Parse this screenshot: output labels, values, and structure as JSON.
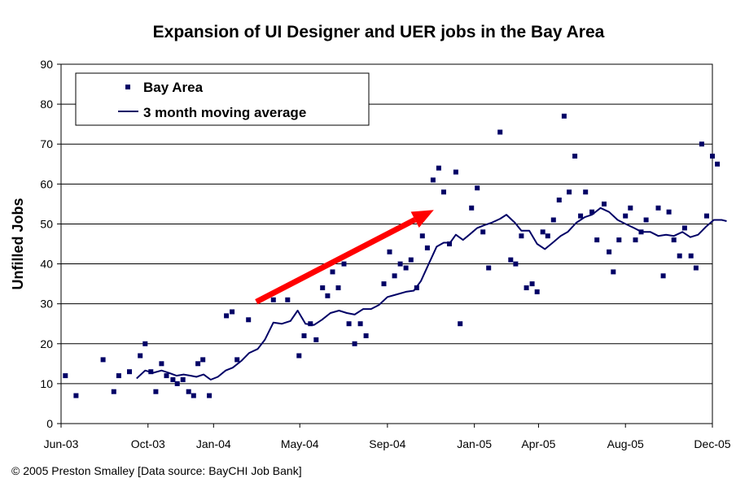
{
  "chart_data": {
    "type": "scatter",
    "title": "Expansion of UI Designer and UER jobs in the Bay Area",
    "xlabel": "",
    "ylabel": "Unfilled Jobs",
    "ylim": [
      0,
      90
    ],
    "yticks": [
      0,
      10,
      20,
      30,
      40,
      50,
      60,
      70,
      80,
      90
    ],
    "xlim": [
      "2003-06-01",
      "2005-12-01"
    ],
    "xticks": [
      {
        "date": "2003-06-01",
        "label": "Jun-03"
      },
      {
        "date": "2003-10-01",
        "label": "Oct-03"
      },
      {
        "date": "2004-01-01",
        "label": "Jan-04"
      },
      {
        "date": "2004-05-01",
        "label": "May-04"
      },
      {
        "date": "2004-09-01",
        "label": "Sep-04"
      },
      {
        "date": "2005-01-01",
        "label": "Jan-05"
      },
      {
        "date": "2005-04-01",
        "label": "Apr-05"
      },
      {
        "date": "2005-08-01",
        "label": "Aug-05"
      },
      {
        "date": "2005-12-01",
        "label": "Dec-05"
      }
    ],
    "grid": true,
    "legend_position": "top-left",
    "series": [
      {
        "name": "Bay Area",
        "kind": "scatter",
        "color": "#000066",
        "points": [
          [
            "2003-06-07",
            12
          ],
          [
            "2003-06-22",
            7
          ],
          [
            "2003-07-30",
            16
          ],
          [
            "2003-08-14",
            8
          ],
          [
            "2003-08-21",
            12
          ],
          [
            "2003-09-05",
            13
          ],
          [
            "2003-09-20",
            17
          ],
          [
            "2003-09-27",
            20
          ],
          [
            "2003-10-05",
            13
          ],
          [
            "2003-10-12",
            8
          ],
          [
            "2003-10-20",
            15
          ],
          [
            "2003-10-27",
            12
          ],
          [
            "2003-11-05",
            11
          ],
          [
            "2003-11-11",
            10
          ],
          [
            "2003-11-19",
            11
          ],
          [
            "2003-11-27",
            8
          ],
          [
            "2003-12-04",
            7
          ],
          [
            "2003-12-10",
            15
          ],
          [
            "2003-12-17",
            16
          ],
          [
            "2003-12-26",
            7
          ],
          [
            "2004-01-19",
            27
          ],
          [
            "2004-01-27",
            28
          ],
          [
            "2004-02-03",
            16
          ],
          [
            "2004-02-19",
            26
          ],
          [
            "2004-03-25",
            31
          ],
          [
            "2004-04-14",
            31
          ],
          [
            "2004-04-30",
            17
          ],
          [
            "2004-05-07",
            22
          ],
          [
            "2004-05-16",
            25
          ],
          [
            "2004-05-24",
            21
          ],
          [
            "2004-06-02",
            34
          ],
          [
            "2004-06-09",
            32
          ],
          [
            "2004-06-16",
            38
          ],
          [
            "2004-06-24",
            34
          ],
          [
            "2004-07-02",
            40
          ],
          [
            "2004-07-09",
            25
          ],
          [
            "2004-07-17",
            20
          ],
          [
            "2004-07-25",
            25
          ],
          [
            "2004-08-02",
            22
          ],
          [
            "2004-08-27",
            35
          ],
          [
            "2004-09-04",
            43
          ],
          [
            "2004-09-11",
            37
          ],
          [
            "2004-09-19",
            40
          ],
          [
            "2004-09-27",
            39
          ],
          [
            "2004-10-04",
            41
          ],
          [
            "2004-10-12",
            34
          ],
          [
            "2004-10-20",
            47
          ],
          [
            "2004-10-27",
            44
          ],
          [
            "2004-11-04",
            61
          ],
          [
            "2004-11-12",
            64
          ],
          [
            "2004-11-19",
            58
          ],
          [
            "2004-11-27",
            45
          ],
          [
            "2004-12-06",
            63
          ],
          [
            "2004-12-12",
            25
          ],
          [
            "2004-12-28",
            54
          ],
          [
            "2005-01-05",
            59
          ],
          [
            "2005-01-13",
            48
          ],
          [
            "2005-01-21",
            39
          ],
          [
            "2005-02-06",
            73
          ],
          [
            "2005-02-21",
            41
          ],
          [
            "2005-02-28",
            40
          ],
          [
            "2005-03-08",
            47
          ],
          [
            "2005-03-15",
            34
          ],
          [
            "2005-03-23",
            35
          ],
          [
            "2005-03-30",
            33
          ],
          [
            "2005-04-07",
            48
          ],
          [
            "2005-04-14",
            47
          ],
          [
            "2005-04-22",
            51
          ],
          [
            "2005-04-30",
            56
          ],
          [
            "2005-05-07",
            77
          ],
          [
            "2005-05-14",
            58
          ],
          [
            "2005-05-22",
            67
          ],
          [
            "2005-05-30",
            52
          ],
          [
            "2005-06-06",
            58
          ],
          [
            "2005-06-15",
            53
          ],
          [
            "2005-06-22",
            46
          ],
          [
            "2005-07-02",
            55
          ],
          [
            "2005-07-09",
            43
          ],
          [
            "2005-07-15",
            38
          ],
          [
            "2005-07-23",
            46
          ],
          [
            "2005-08-01",
            52
          ],
          [
            "2005-08-08",
            54
          ],
          [
            "2005-08-15",
            46
          ],
          [
            "2005-08-23",
            48
          ],
          [
            "2005-08-30",
            51
          ],
          [
            "2005-09-16",
            54
          ],
          [
            "2005-09-23",
            37
          ],
          [
            "2005-10-01",
            53
          ],
          [
            "2005-10-08",
            46
          ],
          [
            "2005-10-16",
            42
          ],
          [
            "2005-10-23",
            49
          ],
          [
            "2005-11-01",
            42
          ],
          [
            "2005-11-08",
            39
          ],
          [
            "2005-11-16",
            70
          ],
          [
            "2005-11-23",
            52
          ],
          [
            "2005-12-01",
            67
          ],
          [
            "2005-12-08",
            65
          ]
        ]
      },
      {
        "name": "3 month moving average",
        "kind": "line",
        "color": "#000066",
        "points": [
          [
            "2003-09-15",
            11.3
          ],
          [
            "2003-09-27",
            13.3
          ],
          [
            "2003-10-08",
            12.7
          ],
          [
            "2003-10-20",
            13.3
          ],
          [
            "2003-10-30",
            12.7
          ],
          [
            "2003-11-10",
            12.0
          ],
          [
            "2003-11-20",
            12.3
          ],
          [
            "2003-11-30",
            12.0
          ],
          [
            "2003-12-08",
            11.7
          ],
          [
            "2003-12-18",
            12.3
          ],
          [
            "2003-12-28",
            11.0
          ],
          [
            "2004-01-07",
            11.7
          ],
          [
            "2004-01-18",
            13.3
          ],
          [
            "2004-01-28",
            14.0
          ],
          [
            "2004-02-09",
            15.7
          ],
          [
            "2004-02-20",
            17.7
          ],
          [
            "2004-03-03",
            18.7
          ],
          [
            "2004-03-13",
            21.0
          ],
          [
            "2004-03-25",
            25.3
          ],
          [
            "2004-04-06",
            25.0
          ],
          [
            "2004-04-18",
            25.7
          ],
          [
            "2004-04-28",
            28.3
          ],
          [
            "2004-05-09",
            25.0
          ],
          [
            "2004-05-21",
            24.7
          ],
          [
            "2004-06-01",
            26.0
          ],
          [
            "2004-06-13",
            27.7
          ],
          [
            "2004-06-25",
            28.3
          ],
          [
            "2004-07-06",
            27.7
          ],
          [
            "2004-07-17",
            27.3
          ],
          [
            "2004-07-29",
            28.7
          ],
          [
            "2004-08-09",
            28.7
          ],
          [
            "2004-08-20",
            29.7
          ],
          [
            "2004-09-01",
            31.7
          ],
          [
            "2004-09-13",
            32.3
          ],
          [
            "2004-09-27",
            33.0
          ],
          [
            "2004-10-08",
            33.3
          ],
          [
            "2004-10-18",
            35.7
          ],
          [
            "2004-10-29",
            40.0
          ],
          [
            "2004-11-09",
            44.3
          ],
          [
            "2004-11-19",
            45.3
          ],
          [
            "2004-11-28",
            45.3
          ],
          [
            "2004-12-06",
            47.3
          ],
          [
            "2004-12-16",
            46.0
          ],
          [
            "2004-12-25",
            47.3
          ],
          [
            "2005-01-05",
            49.0
          ],
          [
            "2005-01-15",
            49.7
          ],
          [
            "2005-01-25",
            50.3
          ],
          [
            "2005-02-06",
            51.3
          ],
          [
            "2005-02-15",
            52.3
          ],
          [
            "2005-02-27",
            50.3
          ],
          [
            "2005-03-08",
            48.3
          ],
          [
            "2005-03-19",
            48.3
          ],
          [
            "2005-03-30",
            45.0
          ],
          [
            "2005-04-10",
            43.7
          ],
          [
            "2005-04-21",
            45.3
          ],
          [
            "2005-05-02",
            47.0
          ],
          [
            "2005-05-12",
            48.0
          ],
          [
            "2005-05-24",
            50.3
          ],
          [
            "2005-06-05",
            51.7
          ],
          [
            "2005-06-15",
            52.3
          ],
          [
            "2005-06-27",
            54.0
          ],
          [
            "2005-07-09",
            53.0
          ],
          [
            "2005-07-21",
            51.0
          ],
          [
            "2005-08-01",
            50.0
          ],
          [
            "2005-08-13",
            49.0
          ],
          [
            "2005-08-24",
            48.0
          ],
          [
            "2005-09-05",
            48.0
          ],
          [
            "2005-09-16",
            47.0
          ],
          [
            "2005-09-27",
            47.3
          ],
          [
            "2005-10-08",
            47.0
          ],
          [
            "2005-10-20",
            48.0
          ],
          [
            "2005-10-31",
            46.7
          ],
          [
            "2005-11-11",
            47.3
          ],
          [
            "2005-11-22",
            49.3
          ],
          [
            "2005-12-03",
            51.0
          ],
          [
            "2005-12-14",
            51.0
          ],
          [
            "2005-12-21",
            50.7
          ]
        ]
      }
    ],
    "annotations": [
      {
        "kind": "arrow",
        "color": "#ff0000",
        "from": [
          "2004-03-01",
          30.5
        ],
        "to": [
          "2004-11-05",
          53.5
        ]
      }
    ]
  },
  "credit": "© 2005 Preston Smalley [Data source: BayCHI Job Bank]"
}
